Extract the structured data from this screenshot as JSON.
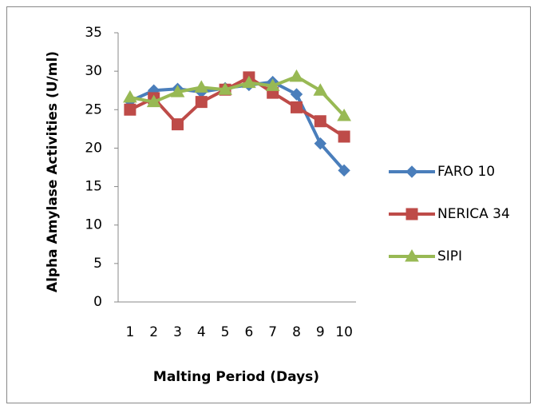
{
  "chart_data": {
    "type": "line",
    "x_label": "Malting Period (Days)",
    "y_label": "Alpha Amylase Activities (U/ml)",
    "categories": [
      "1",
      "2",
      "3",
      "4",
      "5",
      "6",
      "7",
      "8",
      "9",
      "10"
    ],
    "series": [
      {
        "name": "FARO 10",
        "color": "#4a7ebb",
        "marker": "diamond",
        "values": [
          26.1,
          27.5,
          27.7,
          27.3,
          27.8,
          28.2,
          28.6,
          27.0,
          20.6,
          17.1
        ]
      },
      {
        "name": "NERICA 34",
        "color": "#be4b48",
        "marker": "square",
        "values": [
          25.0,
          26.5,
          23.1,
          26.0,
          27.6,
          29.2,
          27.2,
          25.3,
          23.5,
          21.5
        ]
      },
      {
        "name": "SIPI",
        "color": "#98b954",
        "marker": "triangle",
        "values": [
          26.6,
          26.0,
          27.3,
          27.9,
          27.6,
          28.5,
          28.1,
          29.3,
          27.5,
          24.2
        ]
      }
    ],
    "ylim": [
      0,
      35
    ],
    "yticks": [
      0,
      5,
      10,
      15,
      20,
      25,
      30,
      35
    ],
    "grid": false,
    "legend": "right"
  }
}
